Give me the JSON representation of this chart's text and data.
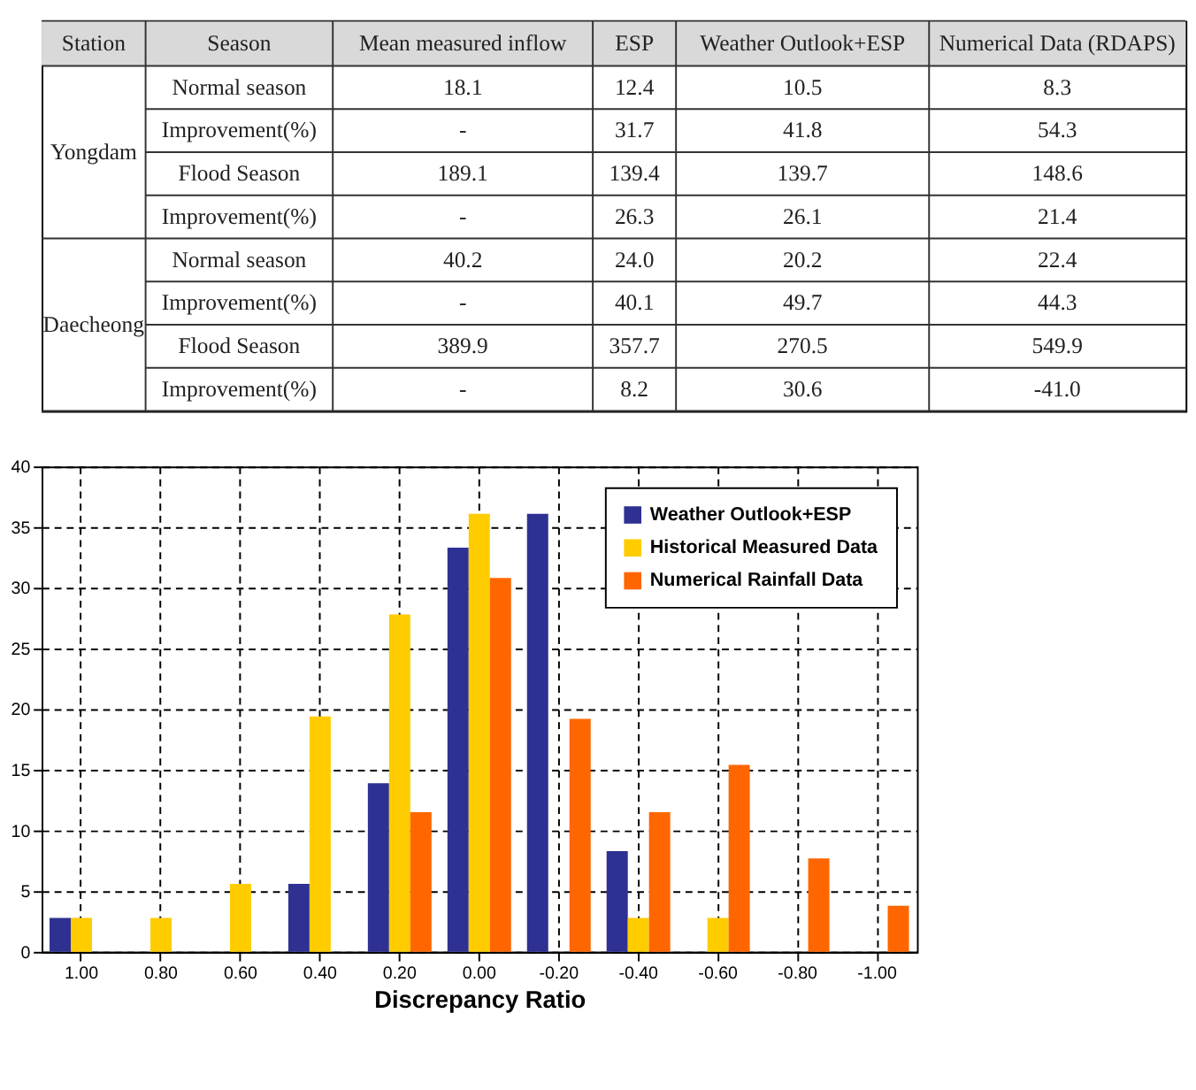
{
  "chart_data": [
    {
      "type": "other",
      "annotations": [
        "Station",
        "Season",
        "Mean  measured  inflow",
        "ESP",
        "Weather  Outlook+ESP",
        "Numerical  Data (RDAPS)",
        "Yongdam",
        "Normal  season",
        "18.1",
        "12.4",
        "10.5",
        "8.3",
        "Improvement(%)",
        "-",
        "31.7",
        "41.8",
        "54.3",
        "Flood  Season",
        "189.1",
        "139.4",
        "139.7",
        "148.6",
        "Improvement(%)",
        "-",
        "26.3",
        "26.1",
        "21.4",
        "Daecheong",
        "Normal  season",
        "40.2",
        "24.0",
        "20.2",
        "22.4",
        "Improvement(%)",
        "-",
        "40.1",
        "49.7",
        "44.3",
        "Flood  Season",
        "389.9",
        "357.7",
        "270.5",
        "549.9",
        "Improvement(%)",
        "-",
        "8.2",
        "30.6",
        "-41.0"
      ]
    },
    {
      "type": "bar",
      "xlabel": "Discrepancy Ratio",
      "categories": [
        "1.00",
        "0.80",
        "0.60",
        "0.40",
        "0.20",
        "0.00",
        "-0.20",
        "-0.40",
        "-0.60",
        "-0.80",
        "-1.00"
      ],
      "series": [
        {
          "name": "Weather Outlook+ESP",
          "color": "#2e3192",
          "values": [
            2.8,
            0,
            0,
            5.6,
            13.9,
            33.3,
            36.1,
            8.3,
            0,
            0,
            0
          ]
        },
        {
          "name": "Historical Measured Data",
          "color": "#ffcc00",
          "values": [
            2.8,
            2.8,
            5.6,
            19.4,
            27.8,
            36.1,
            0,
            2.8,
            2.8,
            0,
            0
          ]
        },
        {
          "name": "Numerical Rainfall Data",
          "color": "#ff6600",
          "values": [
            0,
            0,
            0,
            0,
            11.5,
            30.8,
            19.2,
            11.5,
            15.4,
            7.7,
            3.8
          ]
        }
      ],
      "ylim": [
        0,
        40
      ],
      "yticks": [
        0,
        5,
        10,
        15,
        20,
        25,
        30,
        35,
        40
      ],
      "grid": true,
      "legend": "top right"
    }
  ]
}
